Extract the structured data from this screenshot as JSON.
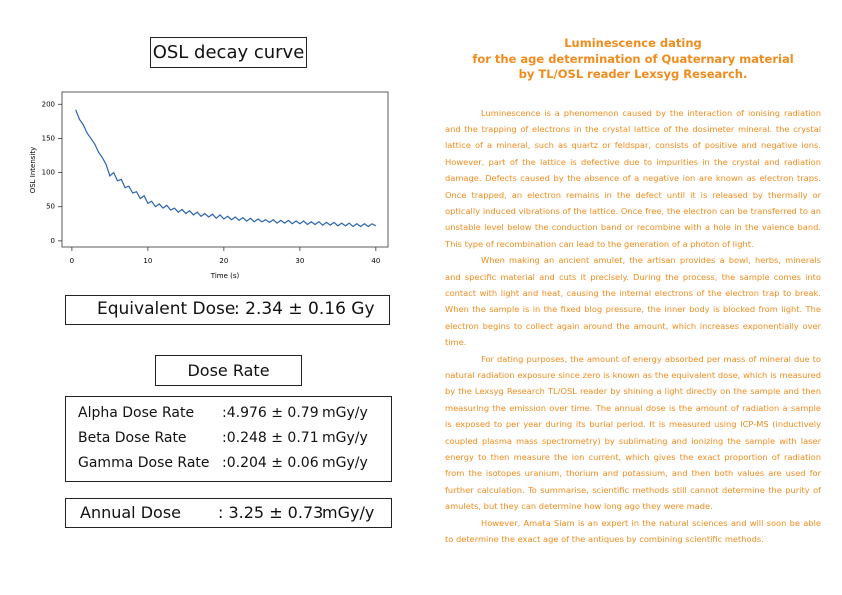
{
  "chart_data": {
    "type": "line",
    "title": "OSL decay curve",
    "x_label": "Time (s)",
    "y_label": "OSL Intensity",
    "x": [
      0.5,
      1,
      1.5,
      2,
      2.5,
      3,
      3.5,
      4,
      4.5,
      5,
      5.5,
      6,
      6.5,
      7,
      7.5,
      8,
      8.5,
      9,
      9.5,
      10,
      10.5,
      11,
      11.5,
      12,
      12.5,
      13,
      13.5,
      14,
      14.5,
      15,
      15.5,
      16,
      16.5,
      17,
      17.5,
      18,
      18.5,
      19,
      19.5,
      20,
      20.5,
      21,
      21.5,
      22,
      22.5,
      23,
      23.5,
      24,
      24.5,
      25,
      25.5,
      26,
      26.5,
      27,
      27.5,
      28,
      28.5,
      29,
      29.5,
      30,
      30.5,
      31,
      31.5,
      32,
      32.5,
      33,
      33.5,
      34,
      34.5,
      35,
      35.5,
      36,
      36.5,
      37,
      37.5,
      38,
      38.5,
      39,
      39.5,
      40
    ],
    "series": [
      {
        "name": "OSL",
        "color": "#2b62b0",
        "values": [
          192,
          178,
          170,
          158,
          150,
          142,
          130,
          122,
          112,
          95,
          100,
          88,
          90,
          78,
          80,
          70,
          72,
          62,
          66,
          55,
          58,
          50,
          54,
          48,
          52,
          45,
          48,
          42,
          46,
          40,
          44,
          38,
          42,
          36,
          40,
          35,
          39,
          33,
          38,
          32,
          36,
          31,
          35,
          30,
          34,
          29,
          33,
          28,
          32,
          28,
          31,
          27,
          31,
          26,
          30,
          26,
          30,
          25,
          29,
          25,
          29,
          24,
          28,
          24,
          28,
          23,
          27,
          23,
          27,
          22,
          26,
          22,
          26,
          21,
          25,
          21,
          25,
          21,
          25,
          22
        ]
      }
    ],
    "xlim": [
      -1.3,
      41.6
    ],
    "ylim": [
      -9,
      218
    ],
    "xticks": [
      0,
      10,
      20,
      30,
      40
    ],
    "yticks": [
      0,
      50,
      100,
      150,
      200
    ]
  },
  "equivalent_dose": {
    "label": "Equivalent Dose",
    "value": ": 2.34 ± 0.16 Gy"
  },
  "dose_rate": {
    "title": "Dose Rate",
    "rows": [
      {
        "label": "Alpha Dose Rate",
        "value": ":4.976 ± 0.79",
        "unit": "mGy/y"
      },
      {
        "label": "Beta Dose Rate",
        "value": ":0.248 ± 0.71",
        "unit": "mGy/y"
      },
      {
        "label": "Gamma Dose Rate",
        "value": ":0.204 ± 0.06",
        "unit": "mGy/y"
      }
    ]
  },
  "annual_dose": {
    "label": "Annual Dose",
    "value": ": 3.25 ± 0.73",
    "unit": "mGy/y"
  },
  "article": {
    "heading": [
      "Luminescence dating",
      "for the age determination of Quaternary material",
      "by TL/OSL reader Lexsyg Research."
    ],
    "paragraphs": [
      "Luminescence is a phenomenon caused by the interaction of ionising radiation and the trapping of electrons in the crystal lattice of the dosimeter mineral. the crystal lattice of a mineral, such as quartz or feldspar, consists of positive and negative ions. However, part of the lattice is defective due to impurities in the crystal and radiation damage. Defects caused by the absence of a negative ion are known as electron traps. Once trapped, an electron remains in the defect until it is released by thermally or optically induced vibrations of the lattice. Once free, the electron can be transferred to an unstable level below the conduction band or recombine with a hole in the valence band. This type of recombination can lead to the generation of a photon of light.",
      "When making an ancient amulet, the artisan provides a bowl, herbs, minerals and specific material and cuts it precisely. During the process, the sample comes into contact with light and heat, causing the internal electrons of the electron trap to break. When the sample is in the fixed blog pressure, the inner body is blocked from light. The electron begins to collect again around the amount, which increases exponentially over time.",
      "For dating purposes, the amount of energy absorbed per mass of mineral due to natural radiation exposure since zero is known as the equivalent dose, which is measured by the Lexsyg Research TL/OSL reader by shining a light directly on the sample and then measuring the emission over time. The annual dose is the amount of radiation a sample is exposed to per year during its burial period. It is measured using ICP-MS (inductively coupled plasma mass spectrometry) by sublimating and ionizing the sample with laser energy to then measure the ion current, which gives the exact proportion of radiation from the isotopes uranium, thorium and potassium, and then both values are used for further calculation. To summarise, scientific methods still cannot determine the purity of amulets, but they can determine how long ago they were made.",
      "However, Amata Siam is an expert in the natural sciences and will soon be able to determine the exact age of the antiques by combining scientific methods."
    ]
  }
}
